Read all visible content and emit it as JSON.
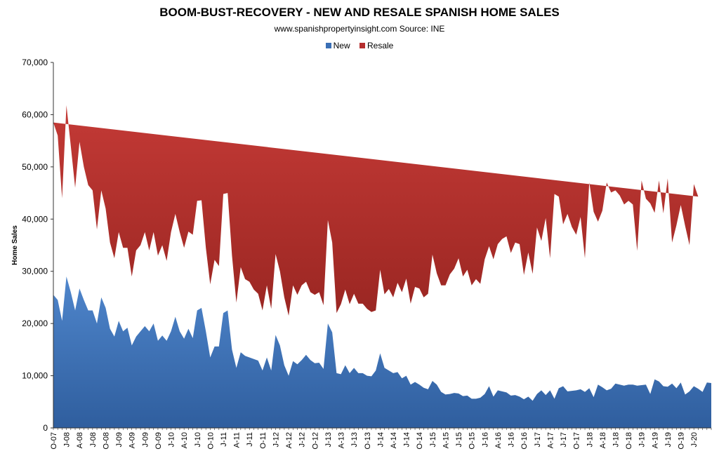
{
  "chart_data": {
    "type": "area",
    "stacked": true,
    "title": "BOOM-BUST-RECOVERY - NEW AND RESALE SPANISH HOME SALES",
    "subtitle": "www.spanishpropertyinsight.com Source: INE",
    "ylabel": "Home Sales",
    "xlabel": "",
    "ylim": [
      0,
      70000
    ],
    "y_ticks": [
      0,
      10000,
      20000,
      30000,
      40000,
      50000,
      60000,
      70000
    ],
    "y_tick_labels": [
      "0",
      "10,000",
      "20,000",
      "30,000",
      "40,000",
      "50,000",
      "60,000",
      "70,000"
    ],
    "x_tick_labels": [
      "O-07",
      "J-08",
      "A-08",
      "J-08",
      "O-08",
      "J-09",
      "A-09",
      "J-09",
      "O-09",
      "J-10",
      "A-10",
      "J-10",
      "O-10",
      "J-11",
      "A-11",
      "J-11",
      "O-11",
      "J-12",
      "A-12",
      "J-12",
      "O-12",
      "J-13",
      "A-13",
      "J-13",
      "O-13",
      "J-14",
      "A-14",
      "J-14",
      "O-14",
      "J-15",
      "A-15",
      "J-15",
      "O-15",
      "J-16",
      "A-16",
      "J-16",
      "O-16",
      "J-17",
      "A-17",
      "J-17",
      "O-17",
      "J-18",
      "A-18",
      "J-18",
      "O-18",
      "J-19",
      "A-19",
      "J-19",
      "O-19",
      "J-20"
    ],
    "legend_position": "top-center",
    "grid": false,
    "series": [
      {
        "name": "New",
        "color": "#3a6fb5",
        "values": [
          25500,
          24500,
          20500,
          29000,
          26000,
          22500,
          26700,
          24500,
          22500,
          22500,
          20000,
          25000,
          23000,
          19000,
          17500,
          20500,
          18500,
          19200,
          15800,
          17500,
          18500,
          19500,
          18500,
          20000,
          16700,
          17700,
          16700,
          18500,
          21300,
          18500,
          17100,
          19000,
          17200,
          22500,
          23000,
          18500,
          13500,
          15600,
          15600,
          22000,
          22500,
          15000,
          11500,
          14500,
          13800,
          13500,
          13200,
          12900,
          11000,
          13500,
          11000,
          17800,
          15800,
          12000,
          10000,
          12800,
          12200,
          13000,
          14000,
          13000,
          12400,
          12500,
          11300,
          20000,
          18300,
          10500,
          10300,
          12000,
          10500,
          11500,
          10500,
          10500,
          10000,
          9900,
          11000,
          14300,
          11500,
          11000,
          10500,
          10700,
          9500,
          10000,
          8300,
          8800,
          8300,
          7700,
          7400,
          9000,
          8300,
          6900,
          6400,
          6500,
          6700,
          6600,
          6100,
          6200,
          5600,
          5600,
          5800,
          6500,
          8000,
          6000,
          7200,
          7000,
          6800,
          6200,
          6300,
          6000,
          5500,
          6000,
          5200,
          6500,
          7200,
          6300,
          7200,
          5600,
          7600,
          8000,
          7000,
          7100,
          7200,
          7400,
          6900,
          7600,
          5900,
          8300,
          7800,
          7200,
          7500,
          8500,
          8300,
          8100,
          8300,
          8300,
          8100,
          8200,
          8300,
          6500,
          9300,
          8900,
          8000,
          7900,
          8500,
          7600,
          8700,
          6400,
          7000,
          8000,
          7500,
          6900,
          8700,
          8600
        ]
      },
      {
        "name": "Resale",
        "color": "#b52e2e",
        "totals": [
          58500,
          56000,
          44000,
          61800,
          54000,
          46000,
          54800,
          50000,
          46500,
          45500,
          38000,
          45500,
          42000,
          35500,
          32500,
          37500,
          34500,
          34500,
          29000,
          34000,
          35000,
          37500,
          34000,
          37500,
          33000,
          35000,
          32000,
          37500,
          41000,
          37500,
          34500,
          37600,
          37000,
          43500,
          43600,
          34500,
          27500,
          32200,
          31000,
          44800,
          45000,
          33000,
          24000,
          30800,
          28500,
          28000,
          26500,
          25700,
          22500,
          27300,
          22800,
          33300,
          30000,
          25000,
          21500,
          27300,
          25500,
          27300,
          28000,
          26000,
          25500,
          26000,
          23500,
          39800,
          35500,
          22000,
          23700,
          26500,
          23700,
          25700,
          23800,
          23800,
          22800,
          22200,
          22500,
          30300,
          25600,
          26600,
          25000,
          27800,
          26000,
          28600,
          23800,
          27000,
          26700,
          25000,
          25700,
          33200,
          29600,
          27300,
          27300,
          29400,
          30500,
          32500,
          29000,
          30300,
          27300,
          28500,
          27600,
          32300,
          34800,
          32300,
          35200,
          36200,
          36700,
          33500,
          35500,
          35200,
          29300,
          33600,
          29500,
          38400,
          35800,
          40200,
          32500,
          44800,
          44300,
          39000,
          41000,
          38500,
          37000,
          40400,
          32500,
          47000,
          41400,
          39500,
          41600,
          47000,
          45100,
          45500,
          44500,
          42800,
          43500,
          42800,
          33900,
          47400,
          43900,
          43000,
          41200,
          47400,
          41100,
          47800,
          35500,
          38800,
          42700,
          38700,
          35000,
          46700,
          44300
        ]
      }
    ]
  }
}
